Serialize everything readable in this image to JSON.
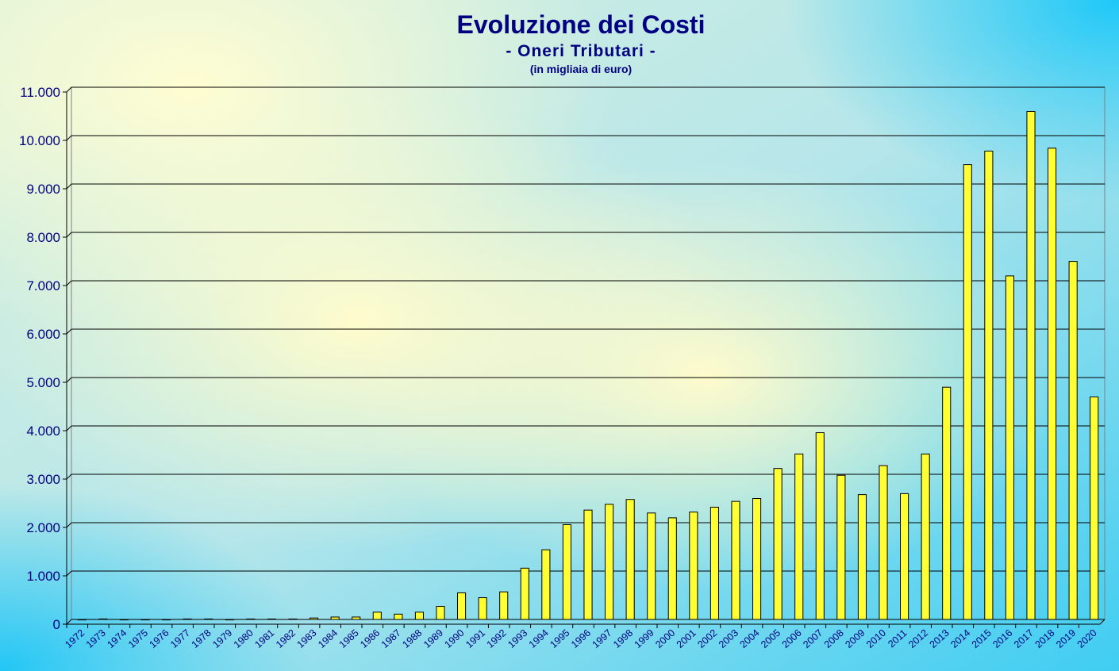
{
  "chart_data": {
    "type": "bar",
    "title": "Evoluzione dei Costi",
    "subtitle": "- Oneri Tributari -",
    "unit_note": "(in migliaia di euro)",
    "ylim": [
      0,
      11000
    ],
    "ytick_step": 1000,
    "ytick_labels": [
      "0",
      "1.000",
      "2.000",
      "3.000",
      "4.000",
      "5.000",
      "6.000",
      "7.000",
      "8.000",
      "9.000",
      "10.000",
      "11.000"
    ],
    "grid": true,
    "legend": "none",
    "categories": [
      "1972",
      "1973",
      "1974",
      "1975",
      "1976",
      "1977",
      "1978",
      "1979",
      "1980",
      "1981",
      "1982",
      "1983",
      "1984",
      "1985",
      "1986",
      "1987",
      "1988",
      "1989",
      "1990",
      "1991",
      "1992",
      "1993",
      "1994",
      "1995",
      "1996",
      "1997",
      "1998",
      "1999",
      "2000",
      "2001",
      "2002",
      "2003",
      "2004",
      "2005",
      "2006",
      "2007",
      "2008",
      "2009",
      "2010",
      "2011",
      "2012",
      "2013",
      "2014",
      "2015",
      "2016",
      "2017",
      "2018",
      "2019",
      "2020"
    ],
    "values": [
      0,
      10,
      0,
      0,
      0,
      10,
      10,
      0,
      10,
      10,
      10,
      30,
      50,
      50,
      150,
      110,
      150,
      270,
      550,
      450,
      570,
      1060,
      1440,
      1960,
      2260,
      2380,
      2480,
      2200,
      2100,
      2220,
      2320,
      2440,
      2500,
      3120,
      3420,
      3860,
      2980,
      2580,
      3180,
      2600,
      3420,
      4800,
      9400,
      9680,
      7100,
      10500,
      9740,
      7400,
      4600
    ],
    "colors": {
      "bar_fill": "#ffff33",
      "bar_stroke": "#000000",
      "text": "#000080",
      "grid": "#000000",
      "bg_yellow": "#fffccc",
      "bg_cyan": "#1ac8f7"
    }
  }
}
